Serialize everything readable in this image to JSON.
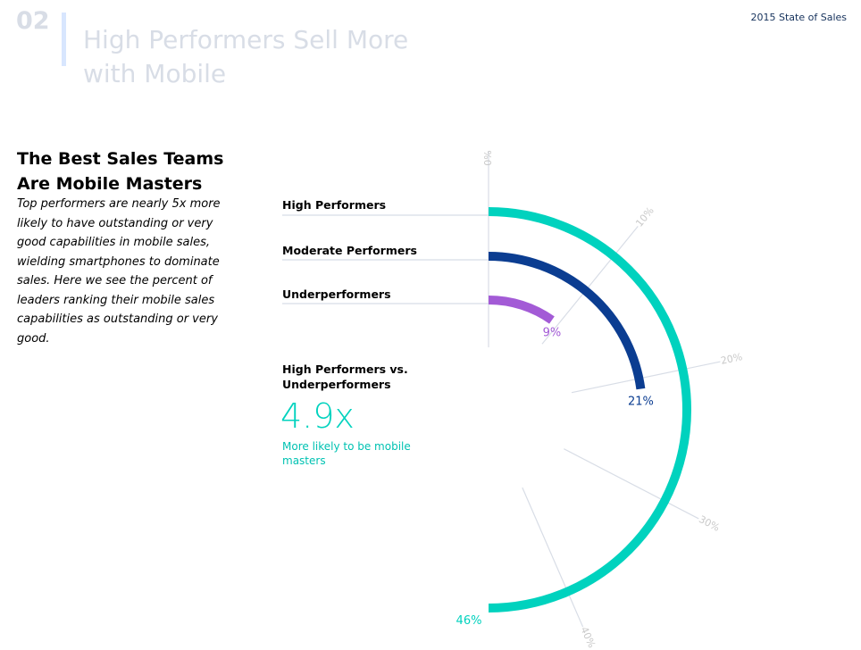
{
  "header": {
    "section_number": "02",
    "title": "High Performers Sell More with Mobile",
    "report_label": "2015 State of Sales"
  },
  "intro": {
    "headline": "The Best Sales Teams Are Mobile Masters",
    "body": "Top performers are nearly 5x more likely to have outstanding or very good capabilities in mobile sales, wielding smartphones to dominate sales. Here we see the percent of leaders ranking their mobile sales capabilities as outstanding or very good."
  },
  "comparison": {
    "title": "High Performers vs. Underperformers",
    "value": "4.9x",
    "note": "More likely to be mobile masters"
  },
  "colors": {
    "high": "#00d2be",
    "moderate": "#0b3d91",
    "under": "#a35bd6",
    "gridline": "#d8dde6",
    "scale_label": "#c9c9c9"
  },
  "chart_data": {
    "type": "radial-bar",
    "axis": {
      "min": 0,
      "max": 46,
      "ticks": [
        0,
        10,
        20,
        30,
        40
      ],
      "tick_labels": [
        "0%",
        "10%",
        "20%",
        "30%",
        "40%"
      ]
    },
    "series": [
      {
        "name": "High Performers",
        "value": 46,
        "label": "46%",
        "color": "#00d2be"
      },
      {
        "name": "Moderate Performers",
        "value": 21,
        "label": "21%",
        "color": "#0b3d91"
      },
      {
        "name": "Underperformers",
        "value": 9,
        "label": "9%",
        "color": "#a35bd6"
      }
    ]
  }
}
